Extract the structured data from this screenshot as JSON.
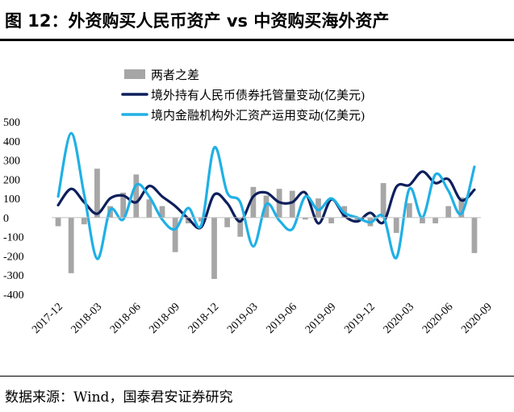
{
  "title": "图 12：外资购买人民币资产 vs 中资购买海外资产",
  "source": "数据来源：Wind，国泰君安证券研究",
  "chart_data": {
    "type": "bar+line",
    "title": "图 12：外资购买人民币资产 vs 中资购买海外资产",
    "xlabel": "",
    "ylabel": "",
    "ylim": [
      -400,
      500
    ],
    "yticks": [
      500,
      400,
      300,
      200,
      100,
      0,
      -100,
      -200,
      -300,
      -400
    ],
    "x_tick_labels": [
      "2017-12",
      "2018-03",
      "2018-06",
      "2018-09",
      "2018-12",
      "2019-03",
      "2019-06",
      "2019-09",
      "2019-12",
      "2020-03",
      "2020-06",
      "2020-09"
    ],
    "grid": false,
    "legend_position": "top-left",
    "colors": {
      "bar": "#a6a6a6",
      "line1": "#0d1f5c",
      "line2": "#1fb0e6"
    },
    "series": [
      {
        "name": "两者之差",
        "kind": "bar",
        "values": [
          -45,
          -290,
          -35,
          255,
          60,
          130,
          225,
          95,
          60,
          -180,
          -30,
          -20,
          -320,
          -50,
          -100,
          160,
          115,
          150,
          140,
          -10,
          100,
          -30,
          60,
          -20,
          -45,
          180,
          -80,
          75,
          -30,
          -30,
          60,
          105,
          -185
        ]
      },
      {
        "name": "境外持有人民币债券托管量变动(亿美元)",
        "kind": "line",
        "values": [
          65,
          150,
          80,
          20,
          100,
          115,
          80,
          165,
          110,
          60,
          -5,
          -50,
          120,
          75,
          -20,
          110,
          130,
          80,
          80,
          130,
          -30,
          95,
          10,
          -20,
          25,
          -25,
          160,
          170,
          240,
          180,
          200,
          90,
          145
        ]
      },
      {
        "name": "境内金融机构外汇资产运用变动(亿美元)",
        "kind": "line",
        "values": [
          110,
          440,
          120,
          -215,
          40,
          -10,
          170,
          110,
          -10,
          -60,
          50,
          -40,
          365,
          130,
          80,
          -150,
          70,
          -15,
          -60,
          110,
          40,
          100,
          25,
          0,
          -25,
          5,
          -210,
          150,
          0,
          225,
          140,
          20,
          265
        ]
      }
    ]
  }
}
